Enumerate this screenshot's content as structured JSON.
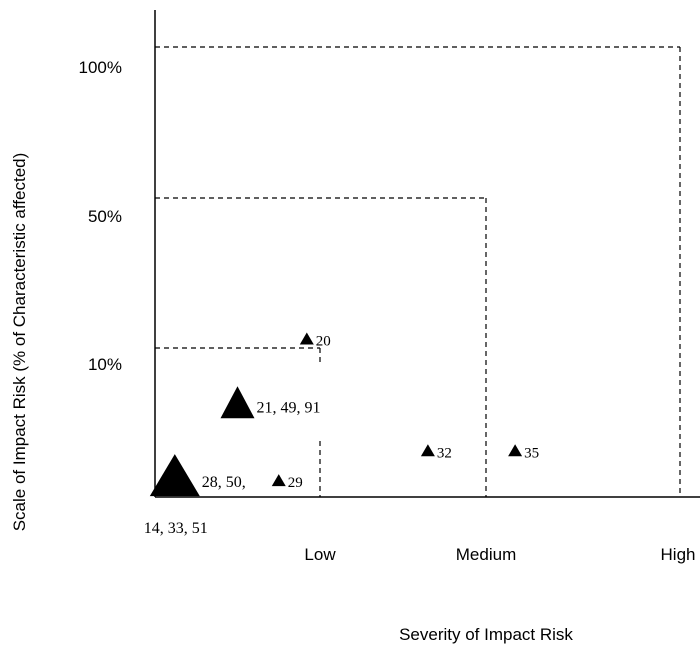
{
  "chart_data": {
    "type": "scatter",
    "xlabel": "Severity of Impact Risk",
    "ylabel": "Scale of Impact Risk (% of Characteristic affected)",
    "x_tick_labels": [
      "Low",
      "Medium",
      "High"
    ],
    "y_tick_labels": [
      "10%",
      "50%",
      "100%"
    ],
    "grid": false,
    "zones": [
      {
        "severity": "Low",
        "scale": "10%"
      },
      {
        "severity": "Medium",
        "scale": "50%"
      },
      {
        "severity": "High",
        "scale": "100%"
      }
    ],
    "points": [
      {
        "label": "20",
        "severity": 0.92,
        "scale": 0.12,
        "marker": "small"
      },
      {
        "label": "21, 49, 91",
        "severity": 0.5,
        "scale": 0.06,
        "marker": "medium"
      },
      {
        "label": "32",
        "severity": 1.65,
        "scale": 0.03,
        "marker": "small"
      },
      {
        "label": "35",
        "severity": 2.15,
        "scale": 0.03,
        "marker": "small"
      },
      {
        "label": "28, 50,",
        "sublabel": "14, 33, 51",
        "severity": 0.12,
        "scale": 0.01,
        "marker": "large"
      },
      {
        "label": "29",
        "severity": 0.75,
        "scale": 0.01,
        "marker": "small"
      }
    ]
  }
}
